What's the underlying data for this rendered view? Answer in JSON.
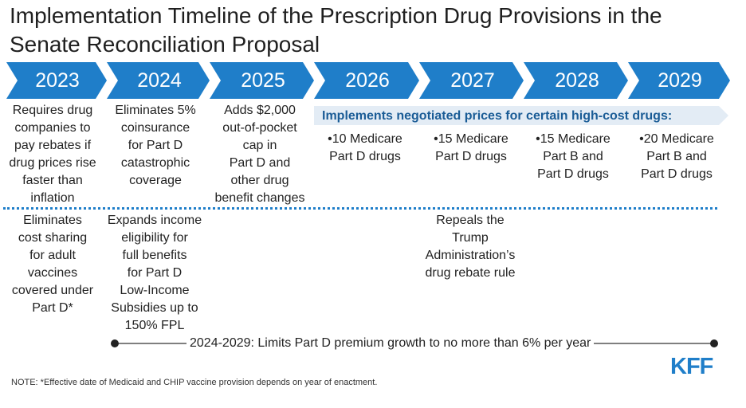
{
  "title": "Implementation Timeline of the Prescription Drug Provisions in the Senate Reconciliation Proposal",
  "years": [
    "2023",
    "2024",
    "2025",
    "2026",
    "2027",
    "2028",
    "2029"
  ],
  "row1": {
    "y2023": [
      "Requires drug",
      "companies to",
      "pay rebates if",
      "drug prices rise",
      "faster than",
      "inflation"
    ],
    "y2024": [
      "Eliminates 5%",
      "coinsurance",
      "for Part D",
      "catastrophic",
      "coverage"
    ],
    "y2025": [
      "Adds $2,000",
      "out-of-pocket",
      "cap in",
      "Part D and",
      "other drug",
      "benefit changes"
    ]
  },
  "banner": "Implements negotiated prices for certain high-cost drugs:",
  "negotiated": {
    "y2026": [
      "•10 Medicare",
      "Part D drugs"
    ],
    "y2027": [
      "•15 Medicare",
      "Part D drugs"
    ],
    "y2028": [
      "•15 Medicare",
      "Part B and",
      "Part D drugs"
    ],
    "y2029": [
      "•20 Medicare",
      "Part B and",
      "Part D drugs"
    ]
  },
  "row2": {
    "y2023": [
      "Eliminates",
      "cost sharing",
      "for adult",
      "vaccines",
      "covered under",
      "Part D*"
    ],
    "y2024": [
      "Expands income",
      "eligibility for",
      "full benefits",
      "for Part D",
      "Low-Income",
      "Subsidies up to",
      "150% FPL"
    ],
    "y2027": [
      "Repeals the",
      "Trump",
      "Administration’s",
      "drug rebate rule"
    ]
  },
  "timeline": "2024-2029: Limits Part D premium growth to no more than 6% per year",
  "note": "NOTE: *Effective date of Medicaid and CHIP vaccine provision depends on year of enactment.",
  "logo": "KFF",
  "colors": {
    "chevron": "#1f7ec9",
    "banner_bg": "#e3ecf5",
    "banner_text": "#1a5c96",
    "divider": "#1f7ec9"
  }
}
